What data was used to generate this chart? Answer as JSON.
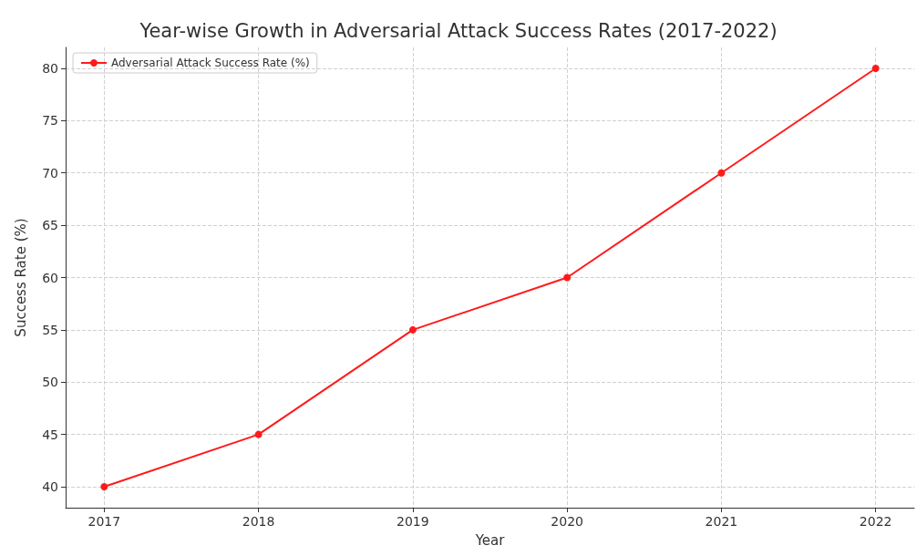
{
  "chart_data": {
    "type": "line",
    "title": "Year-wise Growth in Adversarial Attack Success Rates (2017-2022)",
    "xlabel": "Year",
    "ylabel": "Success Rate (%)",
    "x": [
      2017,
      2018,
      2019,
      2020,
      2021,
      2022
    ],
    "series": [
      {
        "name": "Adversarial Attack Success Rate (%)",
        "color": "#ff1a1a",
        "values": [
          40,
          45,
          55,
          60,
          70,
          80
        ]
      }
    ],
    "xlim": [
      2016.75,
      2022.25
    ],
    "xticks": [
      2017,
      2018,
      2019,
      2020,
      2021,
      2022
    ],
    "ylim": [
      38,
      82
    ],
    "yticks": [
      40,
      45,
      50,
      55,
      60,
      65,
      70,
      75,
      80
    ],
    "grid": true,
    "legend": "top left",
    "marker": "circle",
    "line_style": "solid"
  }
}
